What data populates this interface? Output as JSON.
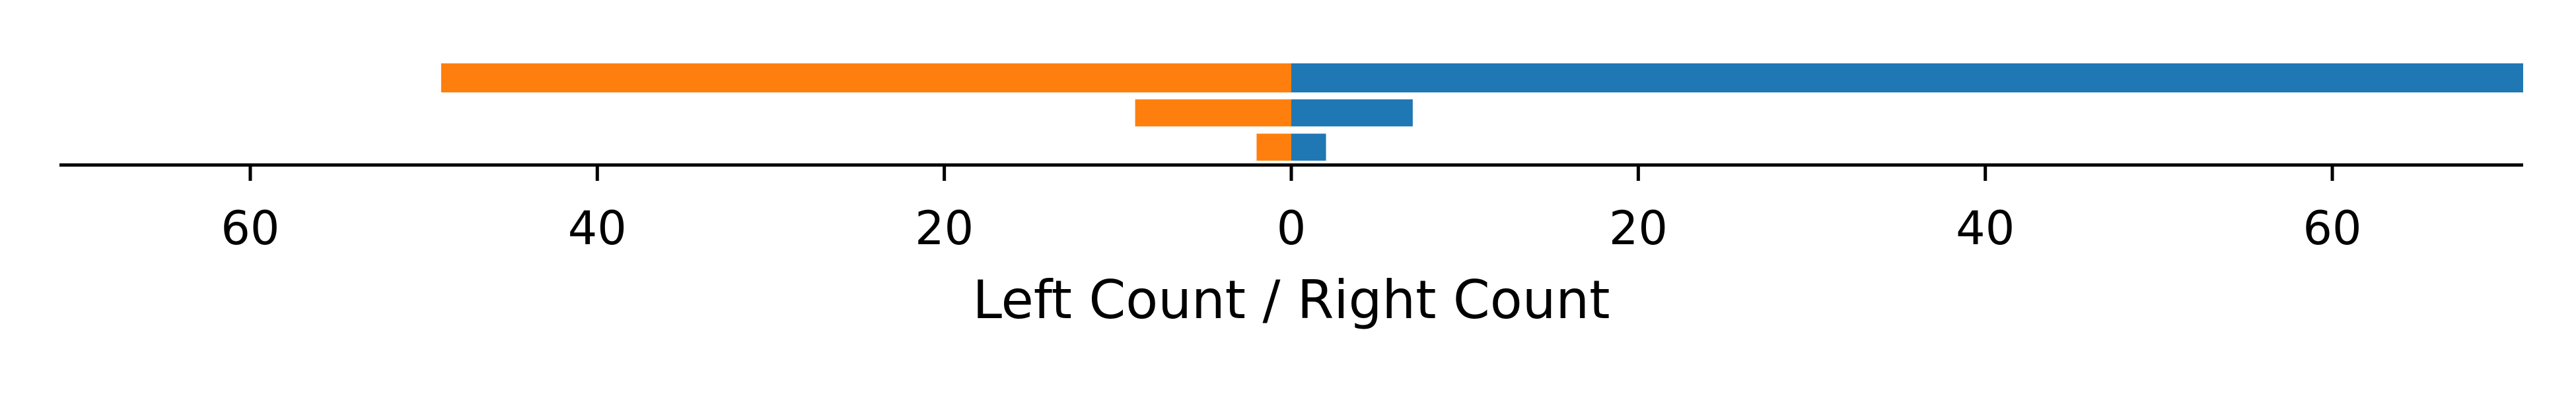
{
  "chart_data": {
    "type": "bar",
    "orientation": "horizontal-diverging",
    "title": "",
    "xlabel": "Left Count / Right Count",
    "ylabel": "",
    "xlim": [
      -71,
      71
    ],
    "xticks": [
      -60,
      -40,
      -20,
      0,
      20,
      40,
      60
    ],
    "xtick_labels": [
      "60",
      "40",
      "20",
      "0",
      "20",
      "40",
      "60"
    ],
    "categories": [
      "",
      "",
      ""
    ],
    "series": [
      {
        "name": "",
        "side": "left",
        "color": "#ff7f0e",
        "values": [
          49,
          9,
          2
        ]
      },
      {
        "name": "",
        "side": "right",
        "color": "#1f77b4",
        "values": [
          71,
          7,
          2
        ]
      }
    ],
    "grid": false,
    "legend": "none"
  }
}
